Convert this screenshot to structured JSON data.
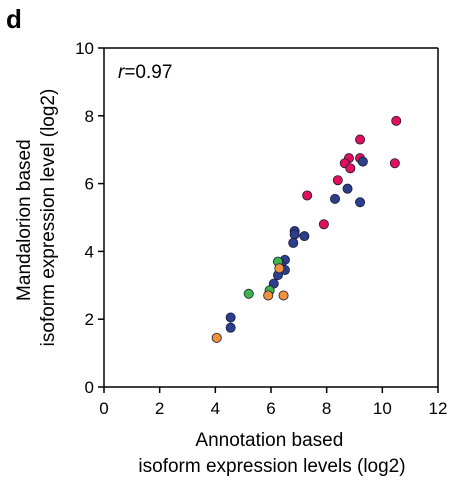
{
  "panel_label": "d",
  "chart_data": {
    "type": "scatter",
    "xlabel_lines": [
      "Annotation based",
      "isoform expression levels (log2)"
    ],
    "ylabel_lines": [
      "Mandalorion based",
      "isoform expression level (log2)"
    ],
    "annotation": {
      "symbol": "r",
      "value": "=0.97"
    },
    "xlim": [
      0,
      12
    ],
    "ylim": [
      0,
      10
    ],
    "xticks": [
      "0",
      "2",
      "4",
      "6",
      "8",
      "10",
      "12"
    ],
    "yticks": [
      "0",
      "2",
      "4",
      "6",
      "8",
      "10"
    ],
    "grid": false,
    "colors": {
      "red": "#e0105a",
      "blue": "#2c3e8c",
      "green": "#3db54a",
      "orange": "#f0923b"
    },
    "points": [
      {
        "x": 10.5,
        "y": 7.85,
        "c": "red"
      },
      {
        "x": 9.2,
        "y": 7.3,
        "c": "red"
      },
      {
        "x": 8.8,
        "y": 6.75,
        "c": "red"
      },
      {
        "x": 9.2,
        "y": 6.75,
        "c": "red"
      },
      {
        "x": 8.65,
        "y": 6.6,
        "c": "red"
      },
      {
        "x": 8.85,
        "y": 6.45,
        "c": "red"
      },
      {
        "x": 10.45,
        "y": 6.6,
        "c": "red"
      },
      {
        "x": 8.4,
        "y": 6.1,
        "c": "red"
      },
      {
        "x": 7.3,
        "y": 5.65,
        "c": "red"
      },
      {
        "x": 7.9,
        "y": 4.8,
        "c": "red"
      },
      {
        "x": 9.3,
        "y": 6.65,
        "c": "blue"
      },
      {
        "x": 8.75,
        "y": 5.85,
        "c": "blue"
      },
      {
        "x": 8.3,
        "y": 5.55,
        "c": "blue"
      },
      {
        "x": 9.2,
        "y": 5.45,
        "c": "blue"
      },
      {
        "x": 6.85,
        "y": 4.6,
        "c": "blue"
      },
      {
        "x": 6.85,
        "y": 4.5,
        "c": "blue"
      },
      {
        "x": 7.2,
        "y": 4.45,
        "c": "blue"
      },
      {
        "x": 6.8,
        "y": 4.25,
        "c": "blue"
      },
      {
        "x": 6.5,
        "y": 3.75,
        "c": "blue"
      },
      {
        "x": 6.35,
        "y": 3.6,
        "c": "blue"
      },
      {
        "x": 6.5,
        "y": 3.45,
        "c": "blue"
      },
      {
        "x": 6.25,
        "y": 3.3,
        "c": "blue"
      },
      {
        "x": 6.1,
        "y": 3.05,
        "c": "blue"
      },
      {
        "x": 4.55,
        "y": 2.05,
        "c": "blue"
      },
      {
        "x": 4.55,
        "y": 1.75,
        "c": "blue"
      },
      {
        "x": 6.25,
        "y": 3.7,
        "c": "green"
      },
      {
        "x": 5.2,
        "y": 2.75,
        "c": "green"
      },
      {
        "x": 5.95,
        "y": 2.85,
        "c": "green"
      },
      {
        "x": 6.3,
        "y": 3.5,
        "c": "orange"
      },
      {
        "x": 5.9,
        "y": 2.7,
        "c": "orange"
      },
      {
        "x": 6.45,
        "y": 2.7,
        "c": "orange"
      },
      {
        "x": 4.05,
        "y": 1.45,
        "c": "orange"
      }
    ]
  }
}
